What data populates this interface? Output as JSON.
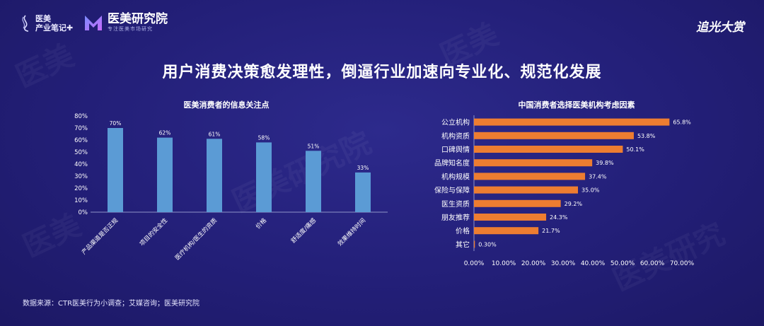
{
  "header": {
    "logo_left_line1": "医美",
    "logo_left_line2": "产业笔记✚",
    "logo_mid_title": "医美研究院",
    "logo_mid_sub": "专注医美市场研究",
    "brand_right": "追光大赏"
  },
  "title": "用户消费决策愈发理性，倒逼行业加速向专业化、规范化发展",
  "source": "数据来源：CTR医美行为小调查；艾媒咨询；医美研究院",
  "colors": {
    "bar_left": "#5b9bd5",
    "bar_right": "#ed7d31",
    "background": "#231f78"
  },
  "chart_data": [
    {
      "type": "bar",
      "title": "医美消费者的信息关注点",
      "categories": [
        "产品渠道是否正规",
        "项目的安全性",
        "医疗机构/医生的资质",
        "价格",
        "舒适度/痛感",
        "效果维持时间"
      ],
      "values": [
        70,
        62,
        61,
        58,
        51,
        33
      ],
      "value_labels": [
        "70%",
        "62%",
        "61%",
        "58%",
        "51%",
        "33%"
      ],
      "ylim": [
        0,
        80
      ],
      "yticks": [
        "0%",
        "10%",
        "20%",
        "30%",
        "40%",
        "50%",
        "60%",
        "70%",
        "80%"
      ],
      "grid": false
    },
    {
      "type": "bar",
      "orientation": "horizontal",
      "title": "中国消费者选择医美机构考虑因素",
      "categories": [
        "公立机构",
        "机构资质",
        "口碑舆情",
        "品牌知名度",
        "机构规模",
        "保险与保障",
        "医生资质",
        "朋友推荐",
        "价格",
        "其它"
      ],
      "values": [
        65.8,
        53.8,
        50.1,
        39.8,
        37.4,
        35.0,
        29.2,
        24.3,
        21.7,
        0.3
      ],
      "value_labels": [
        "65.8%",
        "53.8%",
        "50.1%",
        "39.8%",
        "37.4%",
        "35.0%",
        "29.2%",
        "24.3%",
        "21.7%",
        "0.30%"
      ],
      "xlim": [
        0,
        70
      ],
      "xticks": [
        "0.00%",
        "10.00%",
        "20.00%",
        "30.00%",
        "40.00%",
        "50.00%",
        "60.00%",
        "70.00%"
      ],
      "grid": false
    }
  ]
}
